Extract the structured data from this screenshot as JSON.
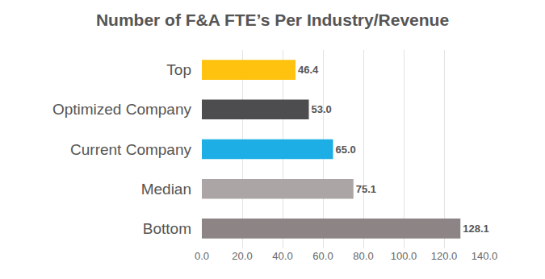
{
  "chart_data": {
    "type": "bar",
    "title": "Number of F&A FTE’s Per Industry/Revenue",
    "orientation": "horizontal",
    "categories": [
      "Top",
      "Optimized Company",
      "Current Company",
      "Median",
      "Bottom"
    ],
    "values": [
      46.4,
      53.0,
      65.0,
      75.1,
      128.1
    ],
    "value_labels": [
      "46.4",
      "53.0",
      "65.0",
      "75.1",
      "128.1"
    ],
    "data_labels": true,
    "colors": [
      "#ffc20e",
      "#4d4d4f",
      "#1caee4",
      "#aba6a5",
      "#8c8485"
    ],
    "xlim": [
      0,
      140
    ],
    "xticks": [
      {
        "value": 0,
        "label": "0.0"
      },
      {
        "value": 20,
        "label": "20.0"
      },
      {
        "value": 40,
        "label": "40.0"
      },
      {
        "value": 60,
        "label": "60.0"
      },
      {
        "value": 80,
        "label": "80.0"
      },
      {
        "value": 100,
        "label": "100.0"
      },
      {
        "value": 120,
        "label": "120.0"
      },
      {
        "value": 140,
        "label": "140.0"
      }
    ],
    "grid": true
  }
}
